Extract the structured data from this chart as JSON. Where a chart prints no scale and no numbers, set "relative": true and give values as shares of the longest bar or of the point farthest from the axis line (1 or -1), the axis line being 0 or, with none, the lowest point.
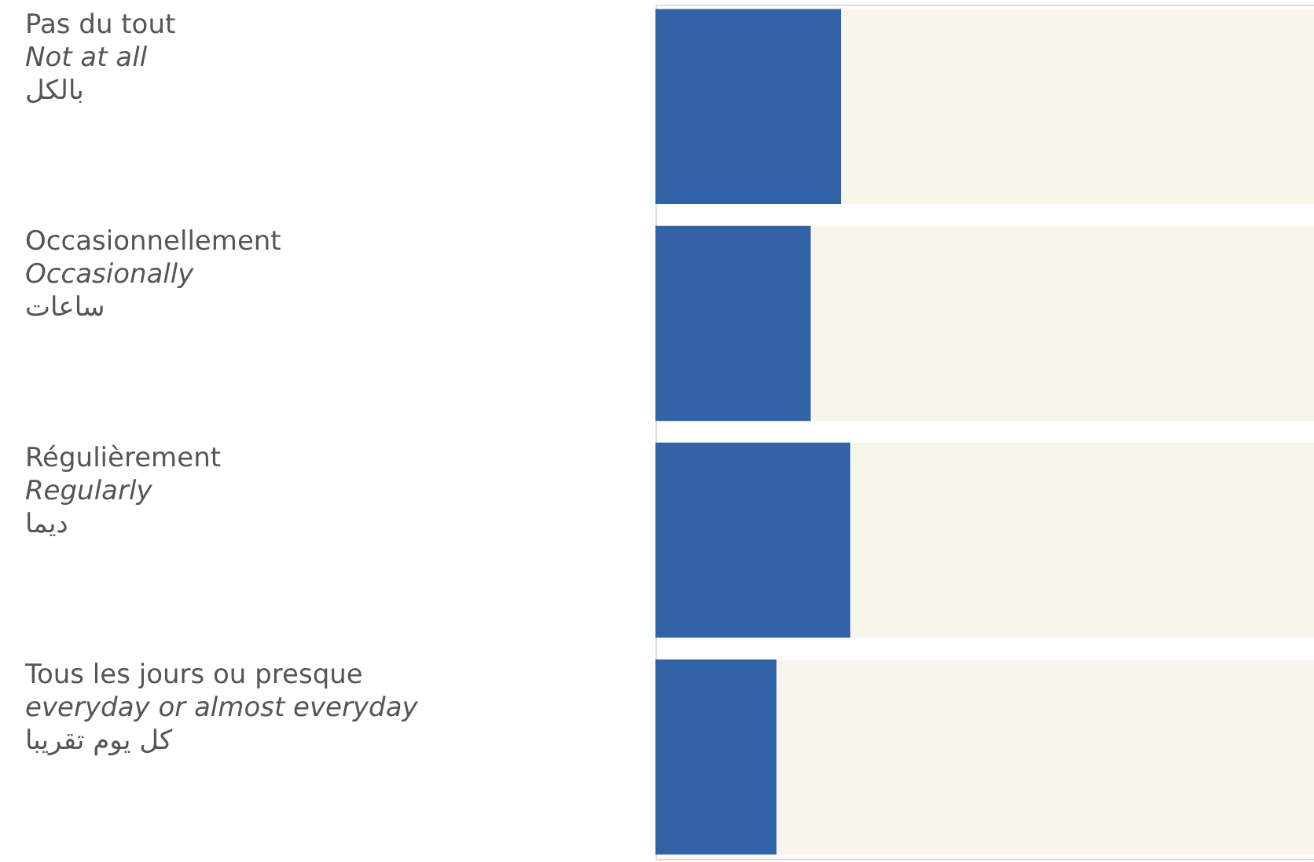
{
  "chart_data": {
    "type": "bar",
    "orientation": "horizontal",
    "stacked": true,
    "relative": true,
    "categories": [
      "Pas du tout\nNot at all\nبالكل",
      "Occasionnellement\nOccasionally\nساعات",
      "Régulièrement\nRegularly\nديما",
      "Tous les jours ou presque\neveryday or almost everyday\nكل يوم تقريبا"
    ],
    "series": [
      {
        "color": "#3263a8",
        "values": [
          0.282,
          0.236,
          0.296,
          0.184
        ]
      },
      {
        "color": "#f7f5ec",
        "values": [
          0.718,
          0.764,
          0.704,
          0.816
        ]
      }
    ]
  }
}
